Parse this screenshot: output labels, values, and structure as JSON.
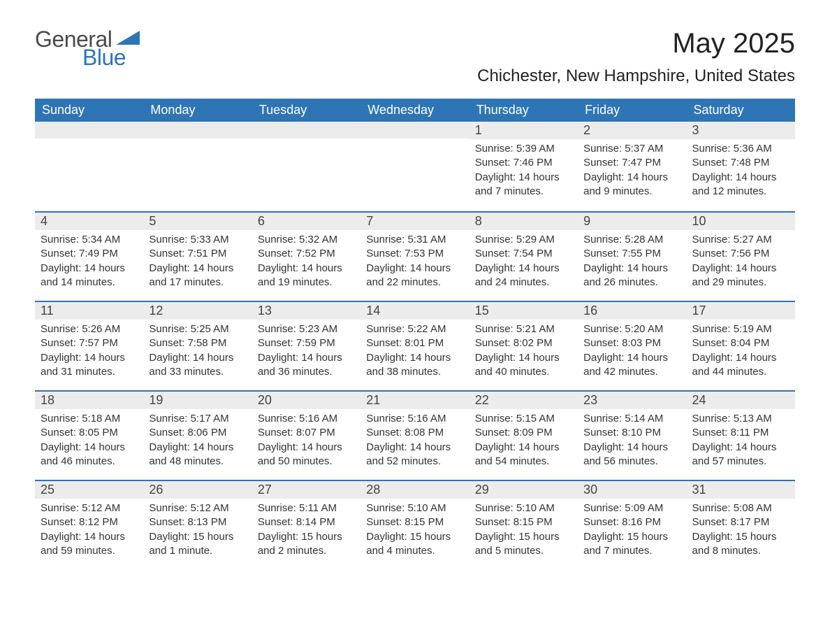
{
  "brand": {
    "part1": "General",
    "part2": "Blue"
  },
  "title": "May 2025",
  "location": "Chichester, New Hampshire, United States",
  "colors": {
    "header_bg": "#2e75b6",
    "header_text": "#ffffff",
    "daynum_bg": "#ececec",
    "rule": "#2e75b6",
    "text": "#333333",
    "page_bg": "#ffffff"
  },
  "weekday_labels": [
    "Sunday",
    "Monday",
    "Tuesday",
    "Wednesday",
    "Thursday",
    "Friday",
    "Saturday"
  ],
  "weeks": [
    [
      null,
      null,
      null,
      null,
      {
        "n": "1",
        "sunrise": "5:39 AM",
        "sunset": "7:46 PM",
        "daylight": "14 hours and 7 minutes."
      },
      {
        "n": "2",
        "sunrise": "5:37 AM",
        "sunset": "7:47 PM",
        "daylight": "14 hours and 9 minutes."
      },
      {
        "n": "3",
        "sunrise": "5:36 AM",
        "sunset": "7:48 PM",
        "daylight": "14 hours and 12 minutes."
      }
    ],
    [
      {
        "n": "4",
        "sunrise": "5:34 AM",
        "sunset": "7:49 PM",
        "daylight": "14 hours and 14 minutes."
      },
      {
        "n": "5",
        "sunrise": "5:33 AM",
        "sunset": "7:51 PM",
        "daylight": "14 hours and 17 minutes."
      },
      {
        "n": "6",
        "sunrise": "5:32 AM",
        "sunset": "7:52 PM",
        "daylight": "14 hours and 19 minutes."
      },
      {
        "n": "7",
        "sunrise": "5:31 AM",
        "sunset": "7:53 PM",
        "daylight": "14 hours and 22 minutes."
      },
      {
        "n": "8",
        "sunrise": "5:29 AM",
        "sunset": "7:54 PM",
        "daylight": "14 hours and 24 minutes."
      },
      {
        "n": "9",
        "sunrise": "5:28 AM",
        "sunset": "7:55 PM",
        "daylight": "14 hours and 26 minutes."
      },
      {
        "n": "10",
        "sunrise": "5:27 AM",
        "sunset": "7:56 PM",
        "daylight": "14 hours and 29 minutes."
      }
    ],
    [
      {
        "n": "11",
        "sunrise": "5:26 AM",
        "sunset": "7:57 PM",
        "daylight": "14 hours and 31 minutes."
      },
      {
        "n": "12",
        "sunrise": "5:25 AM",
        "sunset": "7:58 PM",
        "daylight": "14 hours and 33 minutes."
      },
      {
        "n": "13",
        "sunrise": "5:23 AM",
        "sunset": "7:59 PM",
        "daylight": "14 hours and 36 minutes."
      },
      {
        "n": "14",
        "sunrise": "5:22 AM",
        "sunset": "8:01 PM",
        "daylight": "14 hours and 38 minutes."
      },
      {
        "n": "15",
        "sunrise": "5:21 AM",
        "sunset": "8:02 PM",
        "daylight": "14 hours and 40 minutes."
      },
      {
        "n": "16",
        "sunrise": "5:20 AM",
        "sunset": "8:03 PM",
        "daylight": "14 hours and 42 minutes."
      },
      {
        "n": "17",
        "sunrise": "5:19 AM",
        "sunset": "8:04 PM",
        "daylight": "14 hours and 44 minutes."
      }
    ],
    [
      {
        "n": "18",
        "sunrise": "5:18 AM",
        "sunset": "8:05 PM",
        "daylight": "14 hours and 46 minutes."
      },
      {
        "n": "19",
        "sunrise": "5:17 AM",
        "sunset": "8:06 PM",
        "daylight": "14 hours and 48 minutes."
      },
      {
        "n": "20",
        "sunrise": "5:16 AM",
        "sunset": "8:07 PM",
        "daylight": "14 hours and 50 minutes."
      },
      {
        "n": "21",
        "sunrise": "5:16 AM",
        "sunset": "8:08 PM",
        "daylight": "14 hours and 52 minutes."
      },
      {
        "n": "22",
        "sunrise": "5:15 AM",
        "sunset": "8:09 PM",
        "daylight": "14 hours and 54 minutes."
      },
      {
        "n": "23",
        "sunrise": "5:14 AM",
        "sunset": "8:10 PM",
        "daylight": "14 hours and 56 minutes."
      },
      {
        "n": "24",
        "sunrise": "5:13 AM",
        "sunset": "8:11 PM",
        "daylight": "14 hours and 57 minutes."
      }
    ],
    [
      {
        "n": "25",
        "sunrise": "5:12 AM",
        "sunset": "8:12 PM",
        "daylight": "14 hours and 59 minutes."
      },
      {
        "n": "26",
        "sunrise": "5:12 AM",
        "sunset": "8:13 PM",
        "daylight": "15 hours and 1 minute."
      },
      {
        "n": "27",
        "sunrise": "5:11 AM",
        "sunset": "8:14 PM",
        "daylight": "15 hours and 2 minutes."
      },
      {
        "n": "28",
        "sunrise": "5:10 AM",
        "sunset": "8:15 PM",
        "daylight": "15 hours and 4 minutes."
      },
      {
        "n": "29",
        "sunrise": "5:10 AM",
        "sunset": "8:15 PM",
        "daylight": "15 hours and 5 minutes."
      },
      {
        "n": "30",
        "sunrise": "5:09 AM",
        "sunset": "8:16 PM",
        "daylight": "15 hours and 7 minutes."
      },
      {
        "n": "31",
        "sunrise": "5:08 AM",
        "sunset": "8:17 PM",
        "daylight": "15 hours and 8 minutes."
      }
    ]
  ],
  "labels": {
    "sunrise": "Sunrise:",
    "sunset": "Sunset:",
    "daylight": "Daylight:"
  }
}
